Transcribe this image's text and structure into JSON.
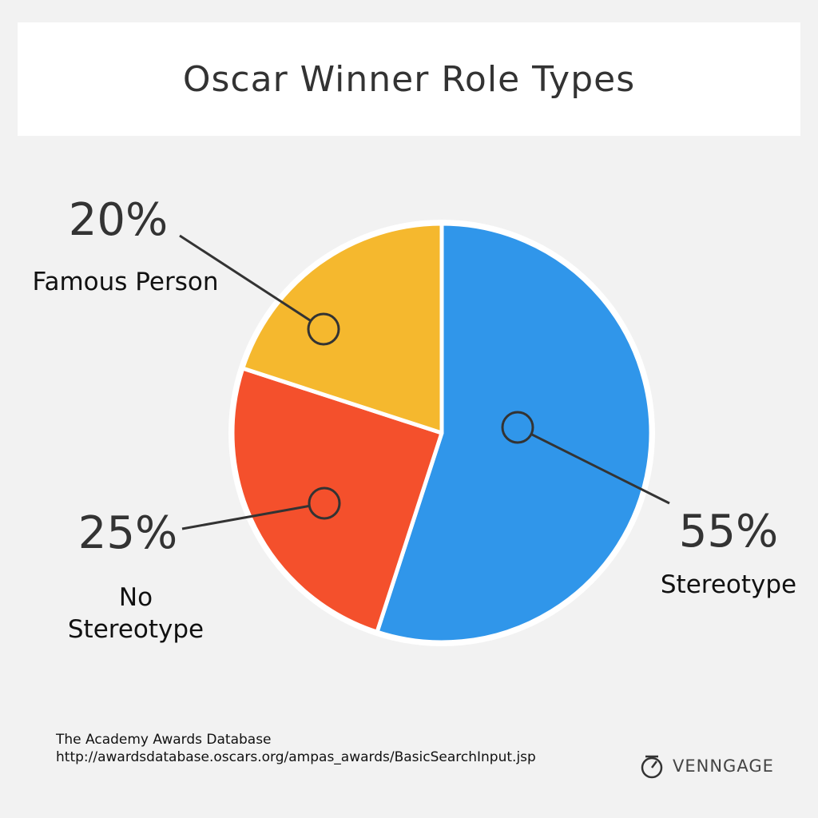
{
  "chart_data": {
    "type": "pie",
    "title": "Oscar Winner Role Types",
    "categories": [
      "Stereotype",
      "No Stereotype",
      "Famous Person"
    ],
    "values": [
      55,
      25,
      20
    ],
    "value_labels": [
      "55%",
      "25%",
      "20%"
    ],
    "colors": [
      "#3096ea",
      "#f4502c",
      "#f5b82e"
    ]
  },
  "footer": {
    "source": "The Academy Awards Database",
    "url": "http://awardsdatabase.oscars.org/ampas_awards/BasicSearchInput.jsp",
    "brand": "VENNGAGE"
  }
}
